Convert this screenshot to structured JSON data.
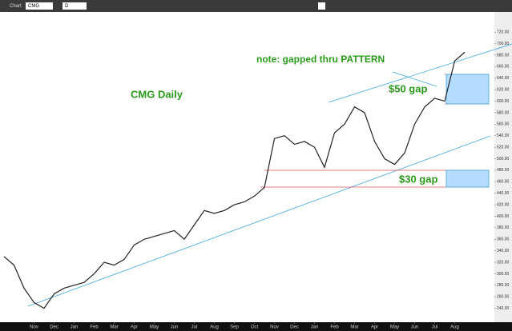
{
  "toolbar": {
    "window": "Chart",
    "symbol": "CMG",
    "period": "D"
  },
  "chart_data": {
    "type": "line",
    "title": "CMG Daily",
    "annotations": [
      "note: gapped thru PATTERN",
      "$50 gap",
      "$30 gap"
    ],
    "categories": [
      null,
      null,
      null,
      "Nov",
      null,
      "Dec",
      null,
      "Jan",
      null,
      "Feb",
      null,
      "Mar",
      null,
      "Apr",
      null,
      "May",
      null,
      "Jun",
      null,
      "Jul",
      null,
      "Aug",
      null,
      "Sep",
      null,
      "Oct",
      null,
      "Nov",
      null,
      "Dec",
      null,
      "Jan",
      null,
      "Feb",
      null,
      "Mar",
      null,
      "Apr",
      null,
      "May",
      null,
      "Jun",
      null,
      "Jul",
      null,
      "Aug",
      null
    ],
    "series": [
      {
        "name": "CMG",
        "color": "#222222",
        "values": [
          330,
          315,
          275,
          250,
          240,
          265,
          275,
          280,
          285,
          300,
          320,
          315,
          325,
          350,
          360,
          365,
          370,
          375,
          360,
          385,
          410,
          405,
          410,
          420,
          425,
          435,
          450,
          535,
          540,
          525,
          530,
          520,
          485,
          545,
          560,
          590,
          580,
          530,
          500,
          490,
          510,
          560,
          590,
          605,
          600,
          670,
          685
        ]
      }
    ],
    "ylim": [
      220,
      730
    ],
    "yticks": [
      {
        "value": 240,
        "label": "240.00"
      },
      {
        "value": 260,
        "label": "260.00"
      },
      {
        "value": 280,
        "label": "280.00"
      },
      {
        "value": 300,
        "label": "300.00"
      },
      {
        "value": 320,
        "label": "320.00"
      },
      {
        "value": 340,
        "label": "340.00"
      },
      {
        "value": 360,
        "label": "360.00"
      },
      {
        "value": 380,
        "label": "380.00"
      },
      {
        "value": 400,
        "label": "400.00"
      },
      {
        "value": 420,
        "label": "420.00"
      },
      {
        "value": 440,
        "label": "440.00"
      },
      {
        "value": 460,
        "label": "460.00"
      },
      {
        "value": 480,
        "label": "480.00"
      },
      {
        "value": 500,
        "label": "500.00"
      },
      {
        "value": 520,
        "label": "520.00"
      },
      {
        "value": 540,
        "label": "540.00"
      },
      {
        "value": 560,
        "label": "560.00"
      },
      {
        "value": 580,
        "label": "580.00"
      },
      {
        "value": 600,
        "label": "600.00"
      },
      {
        "value": 620,
        "label": "620.00"
      },
      {
        "value": 640,
        "label": "640.00"
      },
      {
        "value": 660,
        "label": "660.00"
      },
      {
        "value": 680,
        "label": "680.00"
      },
      {
        "value": 700,
        "label": "700.00"
      },
      {
        "value": 720,
        "label": "720.00"
      }
    ],
    "grid": false
  }
}
